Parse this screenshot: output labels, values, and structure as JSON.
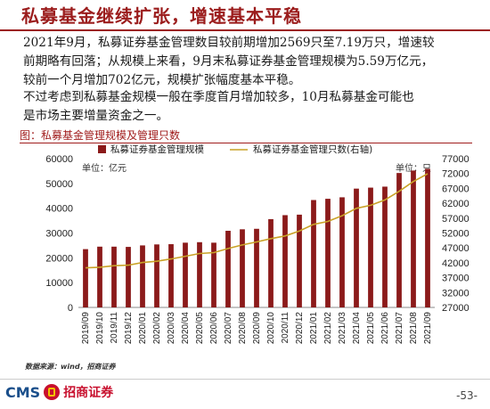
{
  "header": {
    "title": "私募基金继续扩张，增速基本平稳"
  },
  "body": {
    "para1_line1": "2021年9月，私募证券基金管理数目较前期增加2569只至7.19万只，增速较",
    "para1_line2": "前期略有回落；从规模上来看，9月末私募证券基金管理规模为5.59万亿元，",
    "para1_line3": "较前一个月增加702亿元，规模扩张幅度基本平稳。",
    "para2_line1": "不过考虑到私募基金规模一般在季度首月增加较多，10月私募基金可能也",
    "para2_line2": "是市场主要增量资金之一。"
  },
  "figure": {
    "caption": "图：私募基金管理规模及管理只数",
    "source": "数据来源：wind，招商证券"
  },
  "footer": {
    "logo_en": "CMS",
    "logo_cn": "招商证券",
    "page": "-53-"
  },
  "colors": {
    "accent": "#9b1c1c",
    "bar": "#8b1a1a",
    "line": "#c9a227"
  },
  "chart_data": {
    "type": "bar",
    "categories": [
      "2019/09",
      "2019/10",
      "2019/11",
      "2019/12",
      "2020/01",
      "2020/02",
      "2020/03",
      "2020/04",
      "2020/05",
      "2020/06",
      "2020/07",
      "2020/08",
      "2020/09",
      "2020/10",
      "2020/11",
      "2020/12",
      "2021/01",
      "2021/02",
      "2021/03",
      "2021/04",
      "2021/05",
      "2021/06",
      "2021/07",
      "2021/08",
      "2021/09"
    ],
    "series": [
      {
        "name": "私募证券基金管理规模",
        "axis": "left",
        "kind": "bar",
        "values": [
          23500,
          24500,
          24500,
          24400,
          25000,
          25400,
          25500,
          26100,
          26300,
          26100,
          30900,
          31500,
          31700,
          35600,
          37200,
          37400,
          43300,
          43800,
          44400,
          47900,
          48300,
          48700,
          54200,
          55200,
          55900
        ]
      },
      {
        "name": "私募证券基金管理只数(右轴)",
        "axis": "right",
        "kind": "line",
        "values": [
          40300,
          40500,
          41000,
          41200,
          42100,
          42500,
          43300,
          44200,
          45100,
          45400,
          46800,
          48000,
          49000,
          50100,
          51000,
          52700,
          54900,
          55900,
          57800,
          60300,
          61300,
          63100,
          66000,
          69300,
          71900
        ]
      }
    ],
    "left_axis": {
      "unit_label": "单位：亿元",
      "ylim": [
        0,
        60000
      ],
      "ticks": [
        0,
        10000,
        20000,
        30000,
        40000,
        50000,
        60000
      ]
    },
    "right_axis": {
      "unit_label": "单位：只",
      "ylim": [
        27000,
        77000
      ],
      "ticks": [
        27000,
        32000,
        37000,
        42000,
        47000,
        52000,
        57000,
        62000,
        67000,
        72000,
        77000
      ]
    },
    "legend_position": "top"
  }
}
